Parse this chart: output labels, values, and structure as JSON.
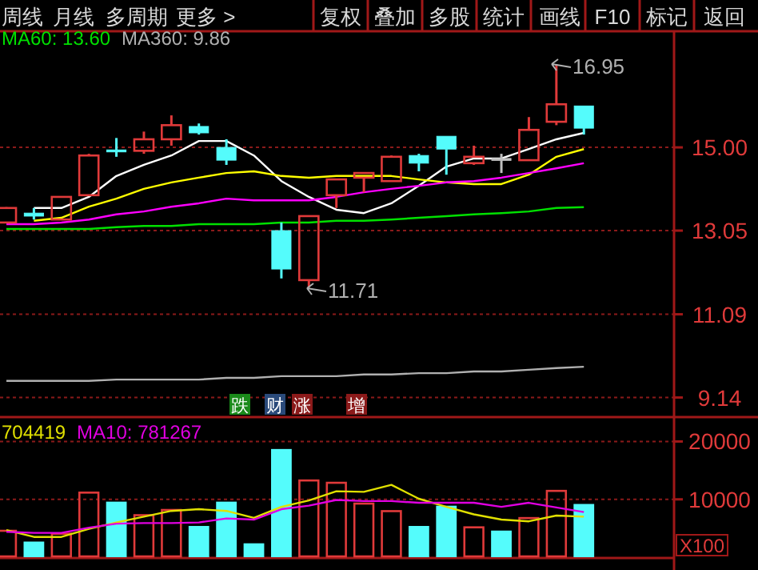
{
  "chart_data": [
    {
      "type": "candlestick",
      "categories": [
        null,
        null,
        null,
        null,
        null,
        null,
        null,
        null,
        null,
        null,
        null,
        null,
        null,
        null,
        null,
        null,
        null,
        null,
        null,
        null,
        null,
        null
      ],
      "ohlc": [
        [
          13.24,
          13.6,
          13.24,
          13.58
        ],
        [
          13.46,
          13.58,
          13.31,
          13.39
        ],
        [
          13.31,
          13.84,
          13.31,
          13.84
        ],
        [
          13.88,
          14.85,
          13.88,
          14.81
        ],
        [
          14.94,
          15.22,
          14.78,
          14.92
        ],
        [
          14.92,
          15.37,
          14.85,
          15.19
        ],
        [
          15.19,
          15.75,
          15.04,
          15.52
        ],
        [
          15.49,
          15.56,
          15.3,
          15.34
        ],
        [
          15.0,
          15.19,
          14.59,
          14.7
        ],
        null,
        [
          13.05,
          13.24,
          11.93,
          12.15
        ],
        [
          11.89,
          13.39,
          11.71,
          13.39
        ],
        [
          13.88,
          14.25,
          13.58,
          14.25
        ],
        [
          14.29,
          14.4,
          13.95,
          14.4
        ],
        [
          14.21,
          14.81,
          14.21,
          14.78
        ],
        [
          14.81,
          14.85,
          14.44,
          14.63
        ],
        [
          15.26,
          15.26,
          14.36,
          14.96
        ],
        [
          14.63,
          15.04,
          14.59,
          14.78
        ],
        [
          14.74,
          14.85,
          14.4,
          14.74
        ],
        [
          14.7,
          15.71,
          14.7,
          15.41
        ],
        [
          15.6,
          16.95,
          15.52,
          16.01
        ],
        [
          15.97,
          15.97,
          15.3,
          15.45
        ]
      ],
      "colors": [
        "#e03a3a",
        "#54fcfc",
        "#e03a3a",
        "#e03a3a",
        "#54fcfc",
        "#e03a3a",
        "#e03a3a",
        "#54fcfc",
        "#54fcfc",
        null,
        "#54fcfc",
        "#e03a3a",
        "#e03a3a",
        "#e03a3a",
        "#e03a3a",
        "#54fcfc",
        "#54fcfc",
        "#e03a3a",
        "#c0c0c0",
        "#e03a3a",
        "#e03a3a",
        "#54fcfc"
      ],
      "series": [
        {
          "type": "line",
          "color": "#ffffff",
          "values": [
            null,
            13.58,
            13.58,
            13.84,
            14.33,
            14.59,
            14.81,
            15.15,
            15.15,
            14.81,
            14.21,
            13.84,
            13.54,
            13.46,
            13.69,
            14.1,
            14.55,
            14.74,
            14.74,
            14.96,
            15.19,
            15.34
          ]
        },
        {
          "type": "line",
          "color": "#ffff00",
          "values": [
            null,
            13.28,
            13.35,
            13.61,
            13.8,
            14.03,
            14.18,
            14.29,
            14.4,
            14.44,
            14.33,
            14.29,
            14.33,
            14.33,
            14.33,
            14.25,
            14.18,
            14.14,
            14.14,
            14.36,
            14.78,
            14.96
          ]
        },
        {
          "type": "line",
          "color": "#ff00ff",
          "values": [
            13.2,
            13.2,
            13.24,
            13.31,
            13.43,
            13.5,
            13.61,
            13.69,
            13.8,
            13.76,
            13.76,
            13.76,
            13.84,
            13.95,
            14.03,
            14.1,
            14.18,
            14.21,
            14.29,
            14.4,
            14.51,
            14.63
          ]
        },
        {
          "type": "line",
          "name": "MA60: 13.60",
          "color": "#00e000",
          "values": [
            13.09,
            13.09,
            13.09,
            13.09,
            13.13,
            13.16,
            13.16,
            13.2,
            13.2,
            13.2,
            13.24,
            13.24,
            13.28,
            13.28,
            13.31,
            13.35,
            13.39,
            13.43,
            13.46,
            13.5,
            13.58,
            13.6
          ]
        },
        {
          "type": "line",
          "name": "MA360: 9.86",
          "color": "#b0b0b0",
          "values": [
            9.53,
            9.53,
            9.53,
            9.53,
            9.56,
            9.56,
            9.56,
            9.56,
            9.6,
            9.6,
            9.64,
            9.64,
            9.64,
            9.68,
            9.68,
            9.71,
            9.71,
            9.75,
            9.75,
            9.79,
            9.83,
            9.86
          ]
        }
      ],
      "ylim": [
        8.7,
        17.74
      ],
      "yticks": [
        {
          "value": 15.0,
          "label": "15.00"
        },
        {
          "value": 13.05,
          "label": "13.05"
        },
        {
          "value": 11.09,
          "label": "11.09"
        },
        {
          "value": 9.14,
          "label": "9.14"
        }
      ],
      "grid": "y",
      "legend": "top left",
      "tick_labels": "y",
      "annotations": [
        "周线",
        "月线",
        "多周期",
        "更多 >",
        "复权",
        "叠加",
        "多股",
        "统计",
        "画线",
        "F10",
        "标记",
        "返回",
        "跌",
        "财",
        "涨",
        "增",
        "16.95",
        "11.71"
      ]
    },
    {
      "type": "bar",
      "categories": [
        null,
        null,
        null,
        null,
        null,
        null,
        null,
        null,
        null,
        null,
        null,
        null,
        null,
        null,
        null,
        null,
        null,
        null,
        null,
        null,
        null,
        null
      ],
      "series": [
        {
          "type": "bar",
          "values": [
            4700,
            2700,
            4200,
            11300,
            9600,
            7400,
            8300,
            5400,
            9600,
            2400,
            18700,
            13400,
            13000,
            9400,
            8100,
            5400,
            8900,
            5300,
            4600,
            6900,
            11600,
            9200
          ],
          "colors": [
            "#e03a3a",
            "#54fcfc",
            "#e03a3a",
            "#e03a3a",
            "#54fcfc",
            "#e03a3a",
            "#e03a3a",
            "#54fcfc",
            "#54fcfc",
            "#54fcfc",
            "#54fcfc",
            "#e03a3a",
            "#e03a3a",
            "#e03a3a",
            "#e03a3a",
            "#54fcfc",
            "#54fcfc",
            "#e03a3a",
            "#54fcfc",
            "#e03a3a",
            "#e03a3a",
            "#54fcfc"
          ]
        },
        {
          "type": "line",
          "name": "704419",
          "color": "#e0e000",
          "values": [
            4700,
            3500,
            3500,
            4900,
            6000,
            7000,
            8000,
            8300,
            8000,
            6800,
            8700,
            9800,
            11400,
            11300,
            12500,
            10100,
            8700,
            7400,
            6500,
            6200,
            7200,
            7000
          ]
        },
        {
          "type": "line",
          "name": "MA10: 781267",
          "color": "#e000e0",
          "values": [
            4400,
            4200,
            4200,
            5100,
            5800,
            5900,
            5900,
            6000,
            6700,
            6500,
            8300,
            8900,
            9900,
            9700,
            9700,
            9400,
            9400,
            9400,
            8700,
            9400,
            8600,
            7800
          ]
        }
      ],
      "ylim": [
        0,
        23800
      ],
      "yticks": [
        10000,
        20000
      ],
      "grid": "y",
      "legend": "top left",
      "tick_labels": "y",
      "annotations": [
        "X100"
      ]
    }
  ]
}
